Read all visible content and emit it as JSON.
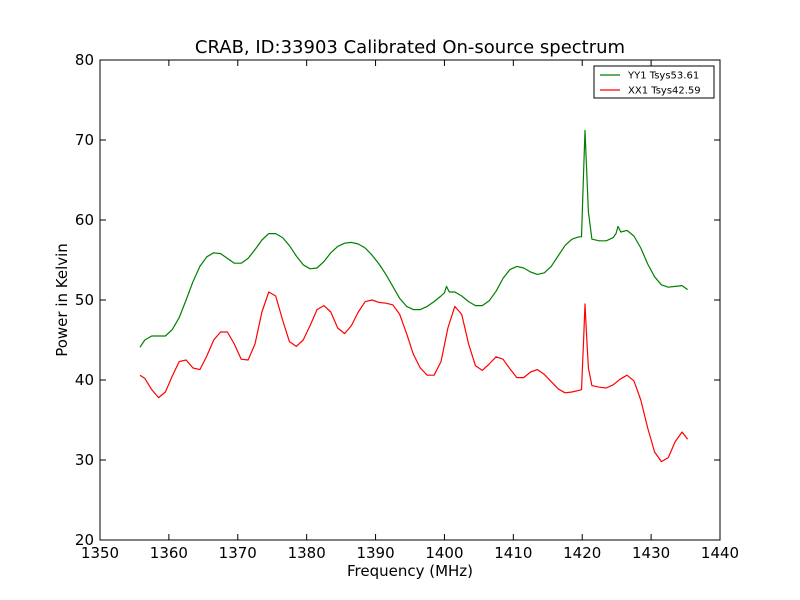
{
  "chart_data": {
    "type": "line",
    "title": "CRAB, ID:33903 Calibrated On-source spectrum",
    "xlabel": "Frequency (MHz)",
    "ylabel": "Power in Kelvin",
    "xlim": [
      1350,
      1440
    ],
    "ylim": [
      20,
      80
    ],
    "xticks": [
      1350,
      1360,
      1370,
      1380,
      1390,
      1400,
      1410,
      1420,
      1430,
      1440
    ],
    "yticks": [
      20,
      30,
      40,
      50,
      60,
      70,
      80
    ],
    "grid": false,
    "legend_position": "top-right",
    "series": [
      {
        "name": "YY1 Tsys53.61",
        "color": "#008000",
        "points": [
          [
            1355.8,
            44.1
          ],
          [
            1356.5,
            45.0
          ],
          [
            1357.5,
            45.5
          ],
          [
            1358.5,
            45.5
          ],
          [
            1359.5,
            45.5
          ],
          [
            1360.5,
            46.3
          ],
          [
            1361.5,
            47.8
          ],
          [
            1362.5,
            50.0
          ],
          [
            1363.5,
            52.3
          ],
          [
            1364.5,
            54.2
          ],
          [
            1365.5,
            55.4
          ],
          [
            1366.5,
            55.9
          ],
          [
            1367.5,
            55.8
          ],
          [
            1368.5,
            55.2
          ],
          [
            1369.5,
            54.6
          ],
          [
            1370.5,
            54.6
          ],
          [
            1371.5,
            55.2
          ],
          [
            1372.5,
            56.3
          ],
          [
            1373.5,
            57.5
          ],
          [
            1374.5,
            58.3
          ],
          [
            1375.5,
            58.3
          ],
          [
            1376.5,
            57.8
          ],
          [
            1377.5,
            56.8
          ],
          [
            1378.5,
            55.5
          ],
          [
            1379.5,
            54.4
          ],
          [
            1380.5,
            53.9
          ],
          [
            1381.5,
            54.0
          ],
          [
            1382.5,
            54.8
          ],
          [
            1383.5,
            55.9
          ],
          [
            1384.5,
            56.7
          ],
          [
            1385.5,
            57.1
          ],
          [
            1386.5,
            57.2
          ],
          [
            1387.5,
            57.0
          ],
          [
            1388.5,
            56.5
          ],
          [
            1389.5,
            55.6
          ],
          [
            1390.5,
            54.5
          ],
          [
            1391.5,
            53.2
          ],
          [
            1392.5,
            51.7
          ],
          [
            1393.5,
            50.2
          ],
          [
            1394.5,
            49.2
          ],
          [
            1395.5,
            48.8
          ],
          [
            1396.5,
            48.8
          ],
          [
            1397.5,
            49.2
          ],
          [
            1398.5,
            49.8
          ],
          [
            1399.5,
            50.5
          ],
          [
            1400.0,
            50.9
          ],
          [
            1400.3,
            51.7
          ],
          [
            1400.7,
            51.0
          ],
          [
            1401.5,
            51.0
          ],
          [
            1402.5,
            50.5
          ],
          [
            1403.5,
            49.8
          ],
          [
            1404.5,
            49.3
          ],
          [
            1405.5,
            49.3
          ],
          [
            1406.5,
            49.9
          ],
          [
            1407.5,
            51.1
          ],
          [
            1408.5,
            52.7
          ],
          [
            1409.5,
            53.8
          ],
          [
            1410.5,
            54.2
          ],
          [
            1411.5,
            54.0
          ],
          [
            1412.5,
            53.5
          ],
          [
            1413.5,
            53.2
          ],
          [
            1414.5,
            53.4
          ],
          [
            1415.5,
            54.2
          ],
          [
            1416.5,
            55.5
          ],
          [
            1417.5,
            56.8
          ],
          [
            1418.5,
            57.6
          ],
          [
            1419.5,
            57.9
          ],
          [
            1419.9,
            57.9
          ],
          [
            1420.2,
            66.0
          ],
          [
            1420.4,
            71.2
          ],
          [
            1420.6,
            67.0
          ],
          [
            1420.9,
            61.0
          ],
          [
            1421.4,
            57.6
          ],
          [
            1422.5,
            57.4
          ],
          [
            1423.5,
            57.4
          ],
          [
            1424.5,
            57.8
          ],
          [
            1424.9,
            58.3
          ],
          [
            1425.2,
            59.2
          ],
          [
            1425.6,
            58.5
          ],
          [
            1426.5,
            58.7
          ],
          [
            1427.5,
            58.0
          ],
          [
            1428.5,
            56.5
          ],
          [
            1429.5,
            54.5
          ],
          [
            1430.5,
            52.9
          ],
          [
            1431.5,
            51.9
          ],
          [
            1432.5,
            51.6
          ],
          [
            1433.5,
            51.7
          ],
          [
            1434.5,
            51.8
          ],
          [
            1435.3,
            51.3
          ]
        ]
      },
      {
        "name": "XX1 Tsys42.59",
        "color": "#ff0000",
        "points": [
          [
            1355.8,
            40.6
          ],
          [
            1356.5,
            40.2
          ],
          [
            1357.5,
            38.8
          ],
          [
            1358.5,
            37.8
          ],
          [
            1359.5,
            38.5
          ],
          [
            1360.5,
            40.5
          ],
          [
            1361.5,
            42.3
          ],
          [
            1362.5,
            42.5
          ],
          [
            1363.5,
            41.5
          ],
          [
            1364.5,
            41.3
          ],
          [
            1365.5,
            43.0
          ],
          [
            1366.5,
            45.0
          ],
          [
            1367.5,
            46.0
          ],
          [
            1368.5,
            46.0
          ],
          [
            1369.5,
            44.5
          ],
          [
            1370.5,
            42.6
          ],
          [
            1371.5,
            42.5
          ],
          [
            1372.5,
            44.5
          ],
          [
            1373.5,
            48.5
          ],
          [
            1374.5,
            51.0
          ],
          [
            1375.5,
            50.5
          ],
          [
            1376.5,
            47.5
          ],
          [
            1377.5,
            44.8
          ],
          [
            1378.5,
            44.2
          ],
          [
            1379.5,
            45.0
          ],
          [
            1380.5,
            46.8
          ],
          [
            1381.5,
            48.8
          ],
          [
            1382.5,
            49.3
          ],
          [
            1383.5,
            48.5
          ],
          [
            1384.5,
            46.5
          ],
          [
            1385.5,
            45.8
          ],
          [
            1386.5,
            46.8
          ],
          [
            1387.5,
            48.5
          ],
          [
            1388.5,
            49.8
          ],
          [
            1389.5,
            50.0
          ],
          [
            1390.5,
            49.7
          ],
          [
            1391.5,
            49.6
          ],
          [
            1392.5,
            49.4
          ],
          [
            1393.5,
            48.2
          ],
          [
            1394.5,
            45.8
          ],
          [
            1395.5,
            43.2
          ],
          [
            1396.5,
            41.5
          ],
          [
            1397.5,
            40.6
          ],
          [
            1398.5,
            40.6
          ],
          [
            1399.5,
            42.3
          ],
          [
            1400.5,
            46.5
          ],
          [
            1401.5,
            49.2
          ],
          [
            1402.5,
            48.2
          ],
          [
            1403.5,
            44.5
          ],
          [
            1404.5,
            41.8
          ],
          [
            1405.5,
            41.2
          ],
          [
            1406.5,
            42.0
          ],
          [
            1407.5,
            42.9
          ],
          [
            1408.5,
            42.6
          ],
          [
            1409.5,
            41.4
          ],
          [
            1410.5,
            40.3
          ],
          [
            1411.5,
            40.3
          ],
          [
            1412.5,
            41.0
          ],
          [
            1413.5,
            41.3
          ],
          [
            1414.5,
            40.7
          ],
          [
            1415.5,
            39.8
          ],
          [
            1416.5,
            38.9
          ],
          [
            1417.5,
            38.4
          ],
          [
            1418.5,
            38.5
          ],
          [
            1419.5,
            38.7
          ],
          [
            1419.9,
            38.8
          ],
          [
            1420.2,
            45.0
          ],
          [
            1420.4,
            49.5
          ],
          [
            1420.6,
            46.0
          ],
          [
            1420.9,
            41.5
          ],
          [
            1421.4,
            39.3
          ],
          [
            1422.5,
            39.1
          ],
          [
            1423.5,
            39.0
          ],
          [
            1424.5,
            39.4
          ],
          [
            1425.5,
            40.1
          ],
          [
            1426.5,
            40.6
          ],
          [
            1427.5,
            39.9
          ],
          [
            1428.5,
            37.5
          ],
          [
            1429.5,
            34.0
          ],
          [
            1430.5,
            31.0
          ],
          [
            1431.5,
            29.8
          ],
          [
            1432.5,
            30.3
          ],
          [
            1433.5,
            32.3
          ],
          [
            1434.5,
            33.5
          ],
          [
            1435.3,
            32.6
          ]
        ]
      }
    ]
  }
}
